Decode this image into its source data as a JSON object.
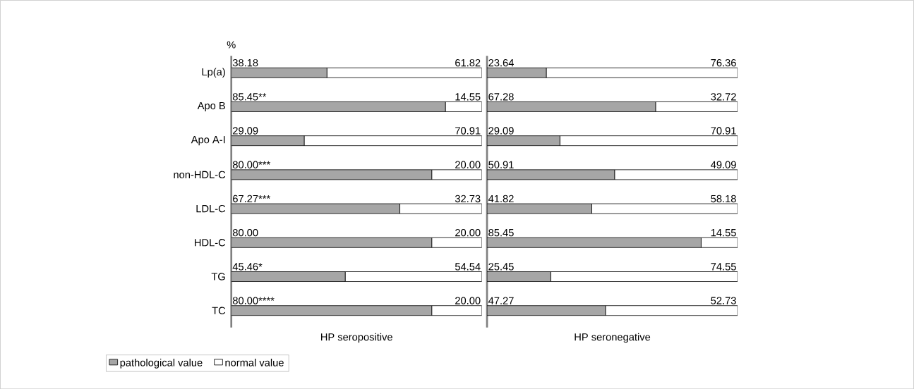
{
  "chart_data": [
    {
      "type": "bar",
      "orientation": "horizontal",
      "stacked": true,
      "ylabel": "%",
      "xlabel": "HP seropositive",
      "categories": [
        "Lp(a)",
        "Apo B",
        "Apo A-I",
        "non-HDL-C",
        "LDL-C",
        "HDL-C",
        "TG",
        "TC"
      ],
      "xlim": [
        0,
        100
      ],
      "tick_labels": "y",
      "legend": "bottom left",
      "series": [
        {
          "name": "pathological value",
          "color": "#a6a6a6",
          "values": [
            38.18,
            85.45,
            29.09,
            80.0,
            67.27,
            80.0,
            45.46,
            80.0
          ],
          "value_labels": [
            "38.18",
            "85.45**",
            "29.09",
            "80.00***",
            "67.27***",
            "80.00",
            "45.46*",
            "80.00****"
          ]
        },
        {
          "name": "normal value",
          "color": "#ffffff",
          "values": [
            61.82,
            14.55,
            70.91,
            20.0,
            32.73,
            20.0,
            54.54,
            20.0
          ],
          "value_labels": [
            "61.82",
            "14.55",
            "70.91",
            "20.00",
            "32.73",
            "20.00",
            "54.54",
            "20.00"
          ]
        }
      ]
    },
    {
      "type": "bar",
      "orientation": "horizontal",
      "stacked": true,
      "xlabel": "HP seronegative",
      "categories": [
        null,
        null,
        null,
        null,
        null,
        null,
        null,
        null
      ],
      "xlim": [
        0,
        100
      ],
      "tick_labels": false,
      "series": [
        {
          "color": "#a6a6a6",
          "values": [
            23.64,
            67.28,
            29.09,
            50.91,
            41.82,
            85.45,
            25.45,
            47.27
          ],
          "value_labels": [
            "23.64",
            "67.28",
            "29.09",
            "50.91",
            "41.82",
            "85.45",
            "25.45",
            "47.27"
          ]
        },
        {
          "color": "#ffffff",
          "values": [
            76.36,
            32.72,
            70.91,
            49.09,
            58.18,
            14.55,
            74.55,
            52.73
          ],
          "value_labels": [
            "76.36",
            "32.72",
            "70.91",
            "49.09",
            "58.18",
            "14.55",
            "74.55",
            "52.73"
          ]
        }
      ]
    }
  ]
}
